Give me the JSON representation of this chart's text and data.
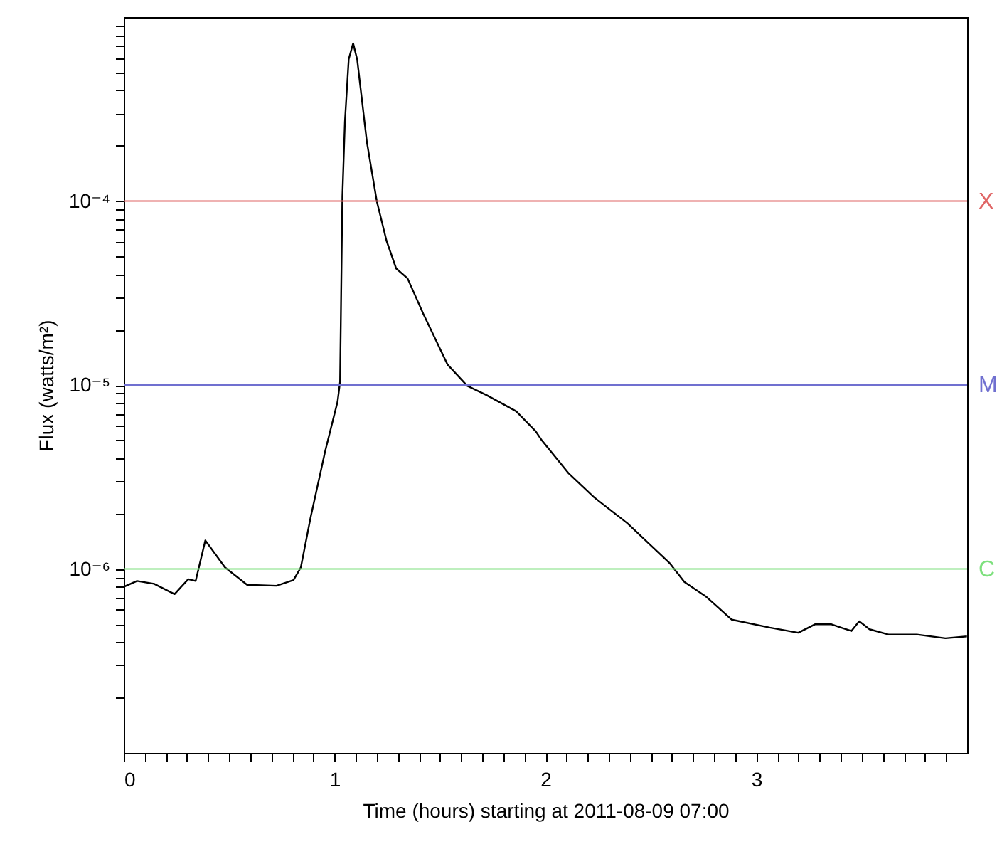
{
  "chart_data": {
    "type": "line",
    "xlabel": "Time (hours) starting at 2011-08-09 07:00",
    "ylabel": "Flux (watts/m²)",
    "log": "y",
    "x": [
      0,
      0.063,
      0.144,
      0.241,
      0.306,
      0.341,
      0.387,
      0.48,
      0.585,
      0.724,
      0.805,
      0.84,
      0.886,
      0.956,
      1.014,
      1.026,
      1.037,
      1.049,
      1.067,
      1.088,
      1.107,
      1.153,
      1.2,
      1.246,
      1.292,
      1.346,
      1.42,
      1.536,
      1.629,
      1.722,
      1.861,
      1.954,
      1.983,
      2.111,
      2.231,
      2.389,
      2.591,
      2.659,
      2.76,
      2.884,
      3.064,
      3.199,
      3.278,
      3.357,
      3.402,
      3.451,
      3.488,
      3.537,
      3.627,
      3.762,
      3.897,
      3.999
    ],
    "series": [
      {
        "color": "#000000",
        "values": [
          8e-07,
          8.6e-07,
          8.3e-07,
          7.3e-07,
          8.8e-07,
          8.6e-07,
          1.43e-06,
          1.02e-06,
          8.2e-07,
          8.1e-07,
          8.7e-07,
          1.02e-06,
          1.9e-06,
          4.4e-06,
          8.1e-06,
          1.04e-05,
          0.000106,
          0.00027,
          0.00059,
          0.00072,
          0.00059,
          0.00021,
          0.0001,
          6.1e-05,
          4.3e-05,
          3.8e-05,
          2.45e-05,
          1.29e-05,
          9.9e-06,
          8.8e-06,
          7.2e-06,
          5.6e-06,
          5e-06,
          3.3e-06,
          2.45e-06,
          1.77e-06,
          1.07e-06,
          8.5e-07,
          7.1e-07,
          5.3e-07,
          4.8e-07,
          4.5e-07,
          5e-07,
          5e-07,
          4.8e-07,
          4.6e-07,
          5.2e-07,
          4.7e-07,
          4.4e-07,
          4.4e-07,
          4.2e-07,
          4.3e-07
        ]
      }
    ],
    "xlim": [
      0,
      4
    ],
    "xticks": [
      0,
      {
        "value": 0.1,
        "label": null
      },
      {
        "value": 0.2,
        "label": null
      },
      {
        "value": 0.3,
        "label": null
      },
      {
        "value": 0.4,
        "label": null
      },
      {
        "value": 0.5,
        "label": null
      },
      {
        "value": 0.6,
        "label": null
      },
      {
        "value": 0.7,
        "label": null
      },
      {
        "value": 0.8,
        "label": null
      },
      {
        "value": 0.9,
        "label": null
      },
      1,
      {
        "value": 1.1,
        "label": null
      },
      {
        "value": 1.2,
        "label": null
      },
      {
        "value": 1.3,
        "label": null
      },
      {
        "value": 1.4,
        "label": null
      },
      {
        "value": 1.5,
        "label": null
      },
      {
        "value": 1.6,
        "label": null
      },
      {
        "value": 1.7,
        "label": null
      },
      {
        "value": 1.8,
        "label": null
      },
      {
        "value": 1.9,
        "label": null
      },
      2,
      {
        "value": 2.1,
        "label": null
      },
      {
        "value": 2.2,
        "label": null
      },
      {
        "value": 2.3,
        "label": null
      },
      {
        "value": 2.4,
        "label": null
      },
      {
        "value": 2.5,
        "label": null
      },
      {
        "value": 2.6,
        "label": null
      },
      {
        "value": 2.7,
        "label": null
      },
      {
        "value": 2.8,
        "label": null
      },
      {
        "value": 2.9,
        "label": null
      },
      3,
      {
        "value": 3.1,
        "label": null
      },
      {
        "value": 3.2,
        "label": null
      },
      {
        "value": 3.3,
        "label": null
      },
      {
        "value": 3.4,
        "label": null
      },
      {
        "value": 3.5,
        "label": null
      },
      {
        "value": 3.6,
        "label": null
      },
      {
        "value": 3.7,
        "label": null
      },
      {
        "value": 3.8,
        "label": null
      },
      {
        "value": 3.9,
        "label": null
      }
    ],
    "ylim": [
      1e-07,
      0.001
    ],
    "yticks": [
      {
        "value": 2e-07,
        "label": null
      },
      {
        "value": 3e-07,
        "label": null
      },
      {
        "value": 4e-07,
        "label": null
      },
      {
        "value": 5e-07,
        "label": null
      },
      {
        "value": 6e-07,
        "label": null
      },
      {
        "value": 7e-07,
        "label": null
      },
      {
        "value": 8e-07,
        "label": null
      },
      {
        "value": 9e-07,
        "label": null
      },
      {
        "value": 1e-06,
        "label": "10⁻⁶"
      },
      {
        "value": 2e-06,
        "label": null
      },
      {
        "value": 3e-06,
        "label": null
      },
      {
        "value": 4e-06,
        "label": null
      },
      {
        "value": 5e-06,
        "label": null
      },
      {
        "value": 6e-06,
        "label": null
      },
      {
        "value": 7e-06,
        "label": null
      },
      {
        "value": 8e-06,
        "label": null
      },
      {
        "value": 9e-06,
        "label": null
      },
      {
        "value": 1e-05,
        "label": "10⁻⁵"
      },
      {
        "value": 2e-05,
        "label": null
      },
      {
        "value": 3e-05,
        "label": null
      },
      {
        "value": 4e-05,
        "label": null
      },
      {
        "value": 5e-05,
        "label": null
      },
      {
        "value": 6e-05,
        "label": null
      },
      {
        "value": 7e-05,
        "label": null
      },
      {
        "value": 8e-05,
        "label": null
      },
      {
        "value": 9e-05,
        "label": null
      },
      {
        "value": 0.0001,
        "label": "10⁻⁴"
      },
      {
        "value": 0.0002,
        "label": null
      },
      {
        "value": 0.0003,
        "label": null
      },
      {
        "value": 0.0004,
        "label": null
      },
      {
        "value": 0.0005,
        "label": null
      },
      {
        "value": 0.0006,
        "label": null
      },
      {
        "value": 0.0007,
        "label": null
      },
      {
        "value": 0.0008,
        "label": null
      },
      {
        "value": 0.0009,
        "label": null
      }
    ],
    "ref_lines": [
      {
        "axis": "y",
        "value": 0.0001,
        "label": "X",
        "color": "#e06666"
      },
      {
        "axis": "y",
        "value": 1e-05,
        "label": "M",
        "color": "#7070d0"
      },
      {
        "axis": "y",
        "value": 1e-06,
        "label": "C",
        "color": "#7ee07e"
      }
    ]
  }
}
